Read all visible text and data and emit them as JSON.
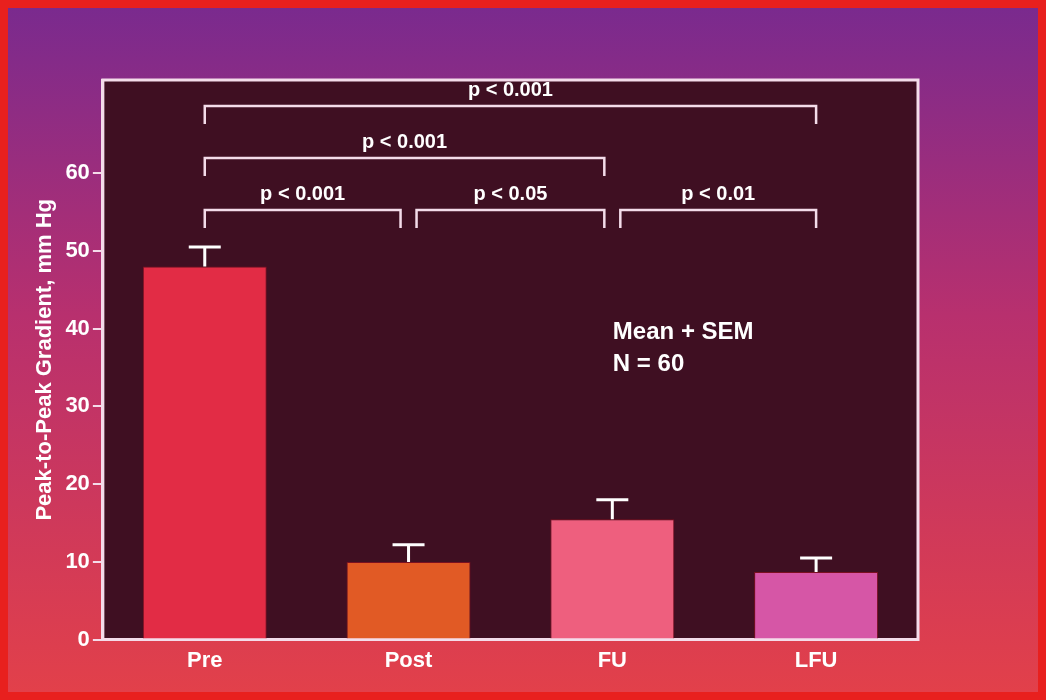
{
  "chart_data": {
    "type": "bar",
    "ylabel": "Peak-to-Peak Gradient, mm Hg",
    "categories": [
      "Pre",
      "Post",
      "FU",
      "LFU"
    ],
    "values": [
      48,
      10,
      15.5,
      8.7
    ],
    "colors": [
      "#e22c45",
      "#e15a25",
      "#ee5f7e",
      "#d656a6"
    ],
    "errors": [
      [
        48,
        50.5
      ],
      [
        10,
        12.2
      ],
      [
        15.5,
        18
      ],
      [
        8.7,
        10.5
      ]
    ],
    "ylim": [
      0,
      72
    ],
    "yticks": [
      0,
      10,
      20,
      30,
      40,
      50,
      60
    ],
    "grid": false,
    "annotations": [
      "p < 0.001",
      "p < 0.001",
      "p < 0.001",
      "p < 0.05",
      "p < 0.01",
      "Mean + SEM",
      "N = 60"
    ]
  }
}
